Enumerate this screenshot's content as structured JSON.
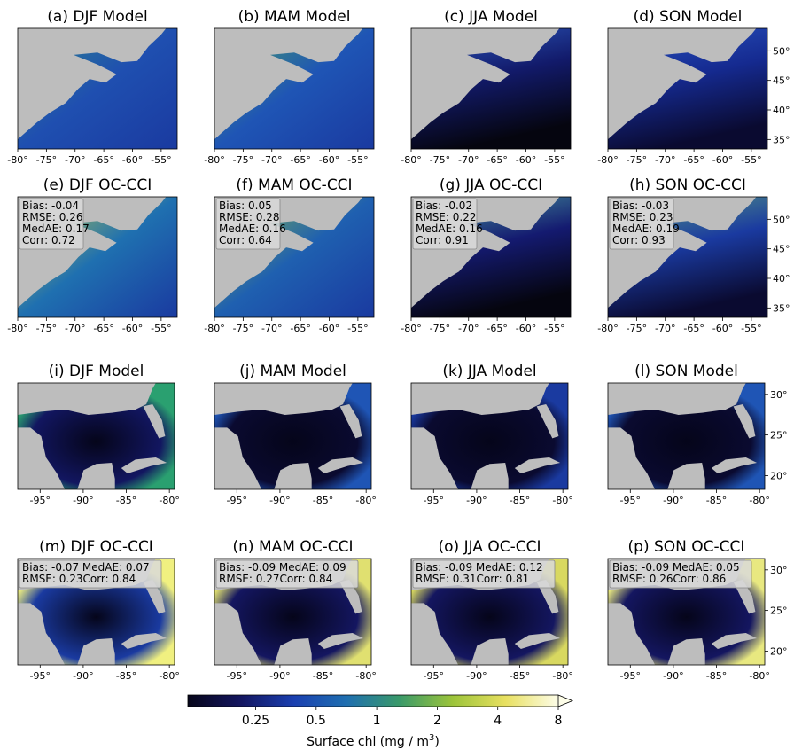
{
  "regions": [
    {
      "xlim": [
        -80,
        -52.2
      ],
      "ylim": [
        33.4,
        53.8
      ],
      "xticks": [
        {
          "value": -80,
          "label": "-80°"
        },
        {
          "value": -75,
          "label": "-75°"
        },
        {
          "value": -70,
          "label": "-70°"
        },
        {
          "value": -65,
          "label": "-65°"
        },
        {
          "value": -60,
          "label": "-60°"
        },
        {
          "value": -55,
          "label": "-55°"
        }
      ],
      "yticks": [
        {
          "value": 35,
          "label": "35°"
        },
        {
          "value": 40,
          "label": "40°"
        },
        {
          "value": 45,
          "label": "45°"
        },
        {
          "value": 50,
          "label": "50°"
        }
      ],
      "panels": [
        {
          "title": "(a) DJF Model"
        },
        {
          "title": "(b) MAM Model"
        },
        {
          "title": "(c) JJA Model"
        },
        {
          "title": "(d) SON Model"
        },
        {
          "title": "(e) DJF OC-CCI",
          "stats": [
            "Bias: -0.04",
            "RMSE: 0.26",
            "MedAE: 0.17",
            "Corr: 0.72"
          ]
        },
        {
          "title": "(f) MAM OC-CCI",
          "stats": [
            "Bias: 0.05",
            "RMSE: 0.28",
            "MedAE: 0.16",
            "Corr: 0.64"
          ]
        },
        {
          "title": "(g) JJA OC-CCI",
          "stats": [
            "Bias: -0.02",
            "RMSE: 0.22",
            "MedAE: 0.16",
            "Corr: 0.91"
          ]
        },
        {
          "title": "(h) SON OC-CCI",
          "stats": [
            "Bias: -0.03",
            "RMSE: 0.23",
            "MedAE: 0.19",
            "Corr: 0.93"
          ]
        }
      ]
    },
    {
      "xlim": [
        -97.6,
        -79.4
      ],
      "ylim": [
        18.3,
        31.4
      ],
      "xticks": [
        {
          "value": -95,
          "label": "-95°"
        },
        {
          "value": -90,
          "label": "-90°"
        },
        {
          "value": -85,
          "label": "-85°"
        },
        {
          "value": -80,
          "label": "-80°"
        }
      ],
      "yticks": [
        {
          "value": 20,
          "label": "20°"
        },
        {
          "value": 25,
          "label": "25°"
        },
        {
          "value": 30,
          "label": "30°"
        }
      ],
      "panels": [
        {
          "title": "(i) DJF Model"
        },
        {
          "title": "(j) MAM Model"
        },
        {
          "title": "(k) JJA Model"
        },
        {
          "title": "(l) SON Model"
        },
        {
          "title": "(m) DJF OC-CCI",
          "stats": [
            "Bias: -0.07 MedAE: 0.07",
            "RMSE: 0.23Corr: 0.84"
          ]
        },
        {
          "title": "(n) MAM OC-CCI",
          "stats": [
            "Bias: -0.09 MedAE: 0.09",
            "RMSE: 0.27Corr: 0.84"
          ]
        },
        {
          "title": "(o) JJA OC-CCI",
          "stats": [
            "Bias: -0.09 MedAE: 0.12",
            "RMSE: 0.31Corr: 0.81"
          ]
        },
        {
          "title": "(p) SON OC-CCI",
          "stats": [
            "Bias: -0.09 MedAE: 0.05",
            "RMSE: 0.26Corr: 0.86"
          ]
        }
      ]
    }
  ],
  "colorbar": {
    "label": "Surface chl (mg / m",
    "label_superscript": "3",
    "label_end": ")",
    "scale": "log",
    "lim": [
      0.115,
      8
    ],
    "ticks": [
      0.25,
      0.5,
      1,
      2,
      4,
      8
    ],
    "extend": "max",
    "colors": [
      "#07061a",
      "#141660",
      "#1a3fb0",
      "#1f6fb0",
      "#3a9a6a",
      "#9cc43a",
      "#e8e060",
      "#fdfde8"
    ]
  }
}
